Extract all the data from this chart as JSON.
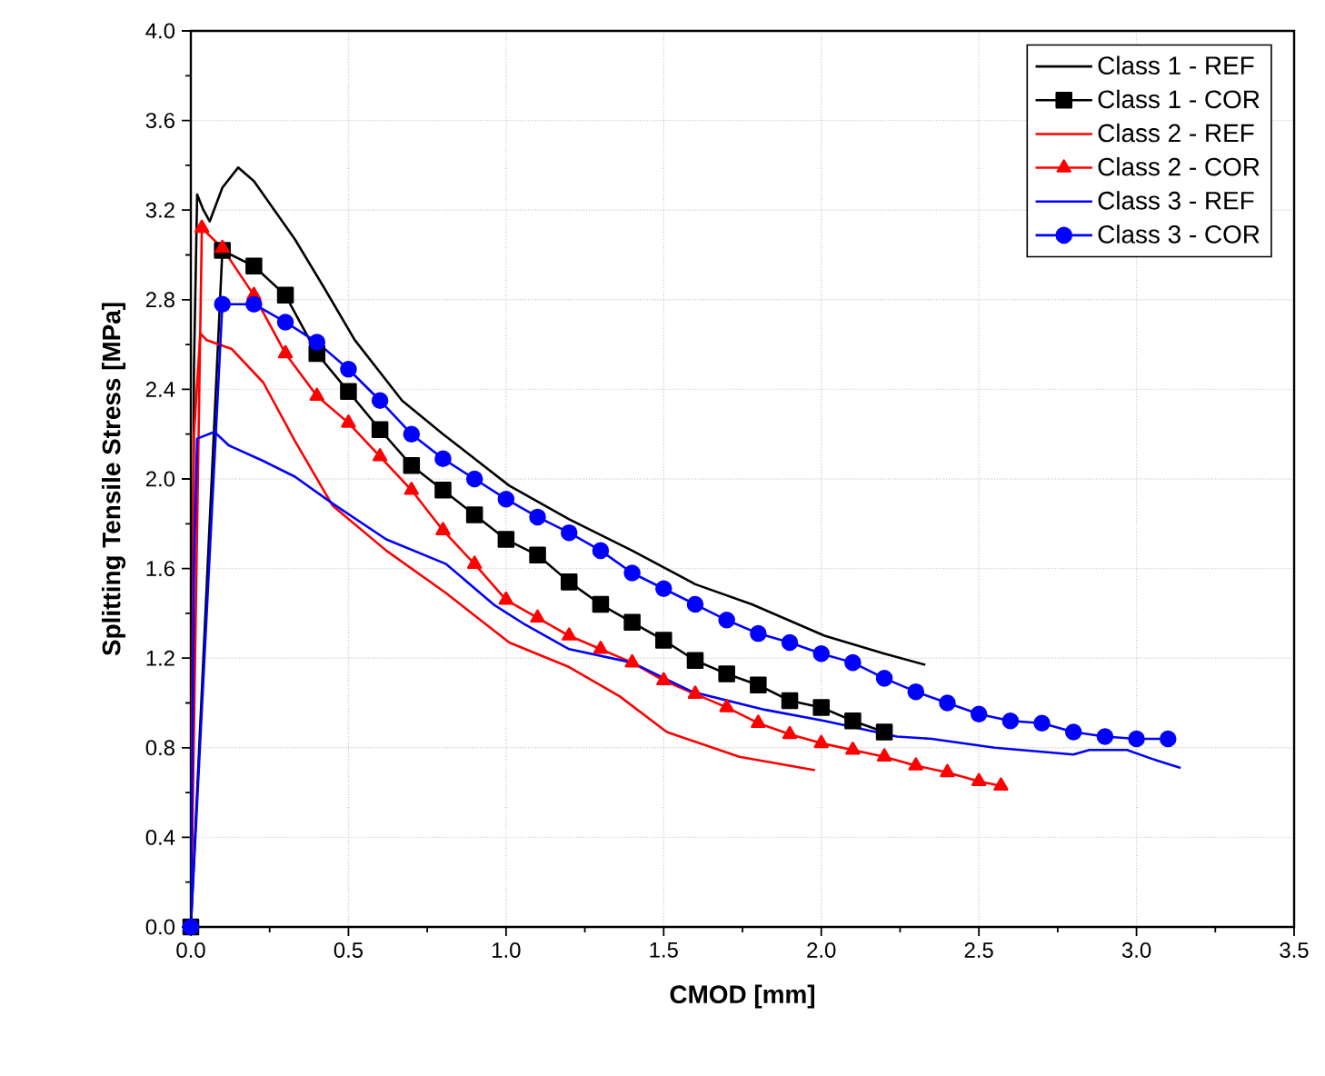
{
  "chart_data": {
    "type": "line",
    "xlabel": "CMOD [mm]",
    "ylabel": "Splitting Tensile Stress [MPa]",
    "xlim": [
      0,
      3.5
    ],
    "ylim": [
      0,
      4.0
    ],
    "xticks": [
      {
        "value": 0,
        "label": "0.0"
      },
      0.5,
      {
        "value": 1,
        "label": "1.0"
      },
      1.5,
      {
        "value": 2,
        "label": "2.0"
      },
      2.5,
      {
        "value": 3,
        "label": "3.0"
      },
      3.5
    ],
    "yticks": [
      {
        "value": 0,
        "label": "0.0"
      },
      0.4,
      0.8,
      1.2,
      1.6,
      {
        "value": 2,
        "label": "2.0"
      },
      2.4,
      2.8,
      3.2,
      3.6,
      {
        "value": 4,
        "label": "4.0"
      }
    ],
    "grid": true,
    "legend": "top right",
    "series": [
      {
        "name": "Class 1 - REF",
        "color": "#000000",
        "marker": "none",
        "x": [
          0,
          0.01,
          0.02,
          0.04,
          0.06,
          0.1,
          0.15,
          0.2,
          0.33,
          0.42,
          0.52,
          0.67,
          0.8,
          1.01,
          1.2,
          1.4,
          1.6,
          1.78,
          2.01,
          2.2,
          2.33
        ],
        "values": [
          0,
          2.5,
          3.27,
          3.2,
          3.15,
          3.3,
          3.39,
          3.33,
          3.07,
          2.86,
          2.62,
          2.35,
          2.2,
          1.97,
          1.82,
          1.68,
          1.53,
          1.44,
          1.3,
          1.22,
          1.17
        ]
      },
      {
        "name": "Class 1 - COR",
        "color": "#000000",
        "marker": "square",
        "x": [
          0,
          0.1,
          0.2,
          0.3,
          0.4,
          0.5,
          0.6,
          0.7,
          0.8,
          0.9,
          1.0,
          1.1,
          1.2,
          1.3,
          1.4,
          1.5,
          1.6,
          1.7,
          1.8,
          1.9,
          2.0,
          2.1,
          2.2
        ],
        "values": [
          0,
          3.02,
          2.95,
          2.82,
          2.56,
          2.39,
          2.22,
          2.06,
          1.95,
          1.84,
          1.73,
          1.66,
          1.54,
          1.44,
          1.36,
          1.28,
          1.19,
          1.13,
          1.08,
          1.01,
          0.98,
          0.92,
          0.87
        ]
      },
      {
        "name": "Class 2 - REF",
        "color": "#ff0000",
        "marker": "none",
        "x": [
          0,
          0.01,
          0.03,
          0.05,
          0.13,
          0.23,
          0.33,
          0.45,
          0.62,
          0.81,
          1.01,
          1.2,
          1.36,
          1.51,
          1.74,
          1.98
        ],
        "values": [
          0,
          2.2,
          2.65,
          2.62,
          2.58,
          2.43,
          2.17,
          1.88,
          1.68,
          1.49,
          1.27,
          1.16,
          1.03,
          0.87,
          0.76,
          0.7
        ]
      },
      {
        "name": "Class 2 - COR",
        "color": "#ff0000",
        "marker": "triangle",
        "x": [
          0,
          0.035,
          0.1,
          0.2,
          0.3,
          0.4,
          0.5,
          0.6,
          0.7,
          0.8,
          0.9,
          1.0,
          1.1,
          1.2,
          1.3,
          1.4,
          1.5,
          1.6,
          1.7,
          1.8,
          1.9,
          2.0,
          2.1,
          2.2,
          2.3,
          2.4,
          2.5,
          2.57
        ],
        "values": [
          0,
          3.12,
          3.03,
          2.82,
          2.56,
          2.37,
          2.25,
          2.1,
          1.95,
          1.77,
          1.62,
          1.46,
          1.38,
          1.3,
          1.24,
          1.18,
          1.1,
          1.04,
          0.98,
          0.91,
          0.86,
          0.82,
          0.79,
          0.76,
          0.72,
          0.69,
          0.65,
          0.63
        ]
      },
      {
        "name": "Class 3 - REF",
        "color": "#0000ff",
        "marker": "none",
        "x": [
          0,
          0.01,
          0.02,
          0.075,
          0.12,
          0.23,
          0.33,
          0.45,
          0.62,
          0.81,
          0.96,
          1.06,
          1.2,
          1.4,
          1.59,
          1.82,
          2.01,
          2.24,
          2.35,
          2.55,
          2.8,
          2.85,
          2.97,
          3.05,
          3.14
        ],
        "values": [
          0,
          1.6,
          2.18,
          2.21,
          2.15,
          2.08,
          2.01,
          1.89,
          1.73,
          1.62,
          1.44,
          1.35,
          1.24,
          1.18,
          1.05,
          0.97,
          0.92,
          0.85,
          0.84,
          0.8,
          0.77,
          0.79,
          0.79,
          0.75,
          0.71
        ]
      },
      {
        "name": "Class 3 - COR",
        "color": "#0000ff",
        "marker": "circle",
        "x": [
          0,
          0.1,
          0.2,
          0.3,
          0.4,
          0.5,
          0.6,
          0.7,
          0.8,
          0.9,
          1.0,
          1.1,
          1.2,
          1.3,
          1.4,
          1.5,
          1.6,
          1.7,
          1.8,
          1.9,
          2.0,
          2.1,
          2.2,
          2.3,
          2.4,
          2.5,
          2.6,
          2.7,
          2.8,
          2.9,
          3.0,
          3.1
        ],
        "values": [
          0,
          2.78,
          2.78,
          2.7,
          2.61,
          2.49,
          2.35,
          2.2,
          2.09,
          2.0,
          1.91,
          1.83,
          1.76,
          1.68,
          1.58,
          1.51,
          1.44,
          1.37,
          1.31,
          1.27,
          1.22,
          1.18,
          1.11,
          1.05,
          1.0,
          0.95,
          0.92,
          0.91,
          0.87,
          0.85,
          0.84,
          0.84
        ]
      }
    ]
  }
}
